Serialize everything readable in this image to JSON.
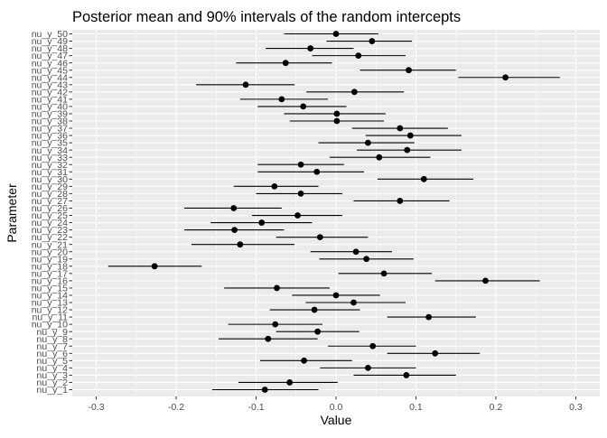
{
  "chart_data": {
    "type": "scatter",
    "title": "Posterior mean and 90% intervals of the random intercepts",
    "xlabel": "Value",
    "ylabel": "Parameter",
    "xlim": [
      -0.33,
      0.33
    ],
    "x_ticks": [
      -0.3,
      -0.2,
      -0.1,
      0.0,
      0.1,
      0.2,
      0.3
    ],
    "x_tick_labels": [
      "-0.3",
      "-0.2",
      "-0.1",
      "0.0",
      "0.1",
      "0.2",
      "0.3"
    ],
    "grid": true,
    "legend": "none",
    "colors": {
      "panel": "#ebebeb",
      "grid": "#ffffff",
      "mark": "#000000",
      "text": "#4d4d4d",
      "title": "#000000"
    },
    "parameters": [
      {
        "label": "nu_y_1",
        "mean": -0.089,
        "lower": -0.155,
        "upper": -0.022
      },
      {
        "label": "nu_y_2",
        "mean": -0.058,
        "lower": -0.122,
        "upper": 0.002
      },
      {
        "label": "nu_y_3",
        "mean": 0.088,
        "lower": 0.022,
        "upper": 0.15
      },
      {
        "label": "nu_y_4",
        "mean": 0.04,
        "lower": -0.02,
        "upper": 0.1
      },
      {
        "label": "nu_y_5",
        "mean": -0.04,
        "lower": -0.095,
        "upper": 0.02
      },
      {
        "label": "nu_y_6",
        "mean": 0.124,
        "lower": 0.064,
        "upper": 0.18
      },
      {
        "label": "nu_y_7",
        "mean": 0.046,
        "lower": -0.01,
        "upper": 0.1
      },
      {
        "label": "nu_y_8",
        "mean": -0.085,
        "lower": -0.147,
        "upper": -0.023
      },
      {
        "label": "nu_y_9",
        "mean": -0.023,
        "lower": -0.075,
        "upper": 0.029
      },
      {
        "label": "nu_y_10",
        "mean": -0.076,
        "lower": -0.135,
        "upper": -0.017
      },
      {
        "label": "nu_y_11",
        "mean": 0.116,
        "lower": 0.064,
        "upper": 0.175
      },
      {
        "label": "nu_y_12",
        "mean": -0.027,
        "lower": -0.083,
        "upper": 0.03
      },
      {
        "label": "nu_y_13",
        "mean": 0.022,
        "lower": -0.038,
        "upper": 0.087
      },
      {
        "label": "nu_y_14",
        "mean": 0.0,
        "lower": -0.055,
        "upper": 0.055
      },
      {
        "label": "nu_y_15",
        "mean": -0.074,
        "lower": -0.14,
        "upper": -0.008
      },
      {
        "label": "nu_y_16",
        "mean": 0.187,
        "lower": 0.124,
        "upper": 0.255
      },
      {
        "label": "nu_y_17",
        "mean": 0.06,
        "lower": 0.003,
        "upper": 0.12
      },
      {
        "label": "nu_y_18",
        "mean": -0.227,
        "lower": -0.285,
        "upper": -0.168
      },
      {
        "label": "nu_y_19",
        "mean": 0.038,
        "lower": -0.021,
        "upper": 0.097
      },
      {
        "label": "nu_y_20",
        "mean": 0.025,
        "lower": -0.032,
        "upper": 0.07
      },
      {
        "label": "nu_y_21",
        "mean": -0.12,
        "lower": -0.181,
        "upper": -0.052
      },
      {
        "label": "nu_y_22",
        "mean": -0.02,
        "lower": -0.075,
        "upper": 0.04
      },
      {
        "label": "nu_y_23",
        "mean": -0.127,
        "lower": -0.19,
        "upper": -0.065
      },
      {
        "label": "nu_y_24",
        "mean": -0.093,
        "lower": -0.157,
        "upper": -0.03
      },
      {
        "label": "nu_y_25",
        "mean": -0.048,
        "lower": -0.105,
        "upper": 0.008
      },
      {
        "label": "nu_y_26",
        "mean": -0.128,
        "lower": -0.19,
        "upper": -0.068
      },
      {
        "label": "nu_y_27",
        "mean": 0.08,
        "lower": 0.022,
        "upper": 0.142
      },
      {
        "label": "nu_y_28",
        "mean": -0.044,
        "lower": -0.1,
        "upper": 0.008
      },
      {
        "label": "nu_y_29",
        "mean": -0.077,
        "lower": -0.128,
        "upper": -0.022
      },
      {
        "label": "nu_y_30",
        "mean": 0.11,
        "lower": 0.052,
        "upper": 0.172
      },
      {
        "label": "nu_y_31",
        "mean": -0.024,
        "lower": -0.098,
        "upper": 0.035
      },
      {
        "label": "nu_y_32",
        "mean": -0.044,
        "lower": -0.098,
        "upper": 0.01
      },
      {
        "label": "nu_y_33",
        "mean": 0.054,
        "lower": -0.008,
        "upper": 0.118
      },
      {
        "label": "nu_y_34",
        "mean": 0.089,
        "lower": 0.026,
        "upper": 0.157
      },
      {
        "label": "nu_y_35",
        "mean": 0.04,
        "lower": -0.022,
        "upper": 0.098
      },
      {
        "label": "nu_y_36",
        "mean": 0.093,
        "lower": 0.037,
        "upper": 0.157
      },
      {
        "label": "nu_y_37",
        "mean": 0.08,
        "lower": 0.02,
        "upper": 0.14
      },
      {
        "label": "nu_y_38",
        "mean": 0.001,
        "lower": -0.058,
        "upper": 0.06
      },
      {
        "label": "nu_y_39",
        "mean": 0.001,
        "lower": -0.065,
        "upper": 0.062
      },
      {
        "label": "nu_y_40",
        "mean": -0.041,
        "lower": -0.098,
        "upper": 0.013
      },
      {
        "label": "nu_y_41",
        "mean": -0.068,
        "lower": -0.12,
        "upper": -0.01
      },
      {
        "label": "nu_y_42",
        "mean": 0.023,
        "lower": -0.037,
        "upper": 0.085
      },
      {
        "label": "nu_y_43",
        "mean": -0.113,
        "lower": -0.175,
        "upper": -0.052
      },
      {
        "label": "nu_y_44",
        "mean": 0.212,
        "lower": 0.153,
        "upper": 0.28
      },
      {
        "label": "nu_y_45",
        "mean": 0.091,
        "lower": 0.03,
        "upper": 0.15
      },
      {
        "label": "nu_y_46",
        "mean": -0.063,
        "lower": -0.125,
        "upper": -0.005
      },
      {
        "label": "nu_y_47",
        "mean": 0.028,
        "lower": -0.03,
        "upper": 0.087
      },
      {
        "label": "nu_y_48",
        "mean": -0.032,
        "lower": -0.088,
        "upper": 0.022
      },
      {
        "label": "nu_y_49",
        "mean": 0.045,
        "lower": -0.012,
        "upper": 0.095
      },
      {
        "label": "nu_y_50",
        "mean": 0.0,
        "lower": -0.065,
        "upper": 0.053
      }
    ]
  }
}
